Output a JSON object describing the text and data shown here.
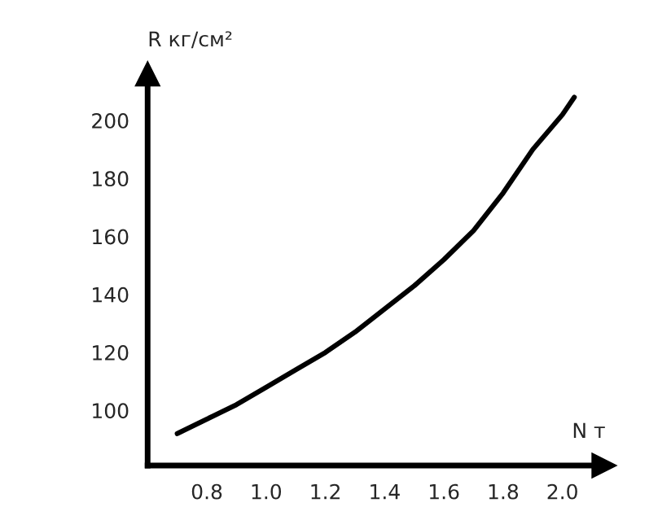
{
  "chart_data": {
    "type": "line",
    "xlabel": "N т",
    "ylabel": "R кг/см²",
    "x": [
      0.7,
      0.8,
      0.9,
      1.0,
      1.1,
      1.2,
      1.3,
      1.4,
      1.5,
      1.6,
      1.7,
      1.8,
      1.9,
      2.0,
      2.04
    ],
    "series": [
      {
        "color": "#000000",
        "values": [
          92,
          97,
          102,
          108,
          114,
          120,
          127,
          135,
          143,
          152,
          162,
          175,
          190,
          202,
          208
        ]
      }
    ],
    "xlim": [
      0.6,
      2.14
    ],
    "ylim": [
      81,
      216
    ],
    "xticks": [
      {
        "value": 0.8,
        "label": "0.8"
      },
      {
        "value": 1.0,
        "label": "1.0"
      },
      {
        "value": 1.2,
        "label": "1.2"
      },
      {
        "value": 1.4,
        "label": "1.4"
      },
      {
        "value": 1.6,
        "label": "1.6"
      },
      {
        "value": 1.8,
        "label": "1.8"
      },
      {
        "value": 2.0,
        "label": "2.0"
      }
    ],
    "yticks": [
      100,
      120,
      140,
      160,
      180,
      200
    ],
    "grid": false,
    "legend": false,
    "marker": "none",
    "line_style": "solid"
  }
}
